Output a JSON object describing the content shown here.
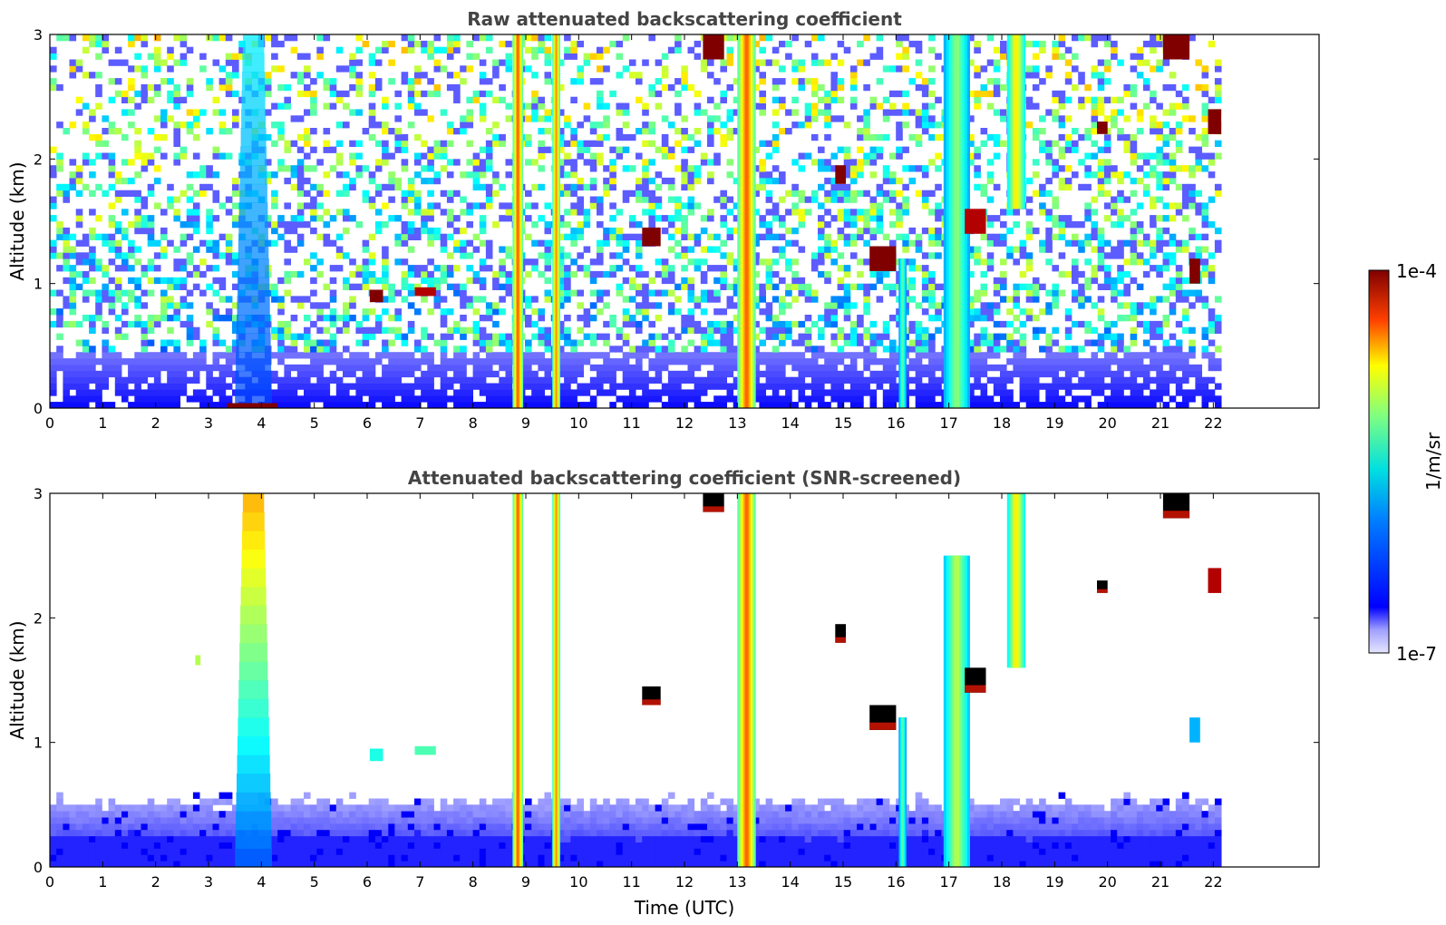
{
  "chart_data": [
    {
      "type": "heatmap",
      "title": "Raw attenuated backscattering coefficient",
      "xlabel": "",
      "ylabel": "Altitude (km)",
      "xlim": [
        0,
        24
      ],
      "ylim": [
        0,
        3
      ],
      "x_ticks": [
        "0",
        "1",
        "2",
        "3",
        "4",
        "5",
        "6",
        "7",
        "8",
        "9",
        "10",
        "11",
        "12",
        "13",
        "14",
        "15",
        "16",
        "17",
        "18",
        "19",
        "20",
        "21",
        "22"
      ],
      "y_ticks": [
        "0",
        "1",
        "2",
        "3"
      ],
      "data_extent_hours": [
        0,
        22.15
      ],
      "background_noise": {
        "description": "pixel noise increasing with altitude; boundary layer below ~0.5 km",
        "boundary_layer_top_km": 0.45
      },
      "features": [
        {
          "kind": "aerosol_plume",
          "x_start": 3.5,
          "x_end": 4.2,
          "y_bottom": 0,
          "y_top": 3.0,
          "level": 0.35
        },
        {
          "kind": "cloud_column",
          "x_start": 8.75,
          "x_end": 8.95,
          "y_bottom": 0,
          "y_top": 3.0,
          "level": 0.85
        },
        {
          "kind": "cloud_column",
          "x_start": 9.5,
          "x_end": 9.65,
          "y_bottom": 0,
          "y_top": 3.0,
          "level": 0.8
        },
        {
          "kind": "cloud_column",
          "x_start": 13.0,
          "x_end": 13.35,
          "y_bottom": 0,
          "y_top": 3.0,
          "level": 0.85
        },
        {
          "kind": "cloud_column",
          "x_start": 16.05,
          "x_end": 16.2,
          "y_bottom": 0,
          "y_top": 1.2,
          "level": 0.5
        },
        {
          "kind": "cloud_column",
          "x_start": 16.9,
          "x_end": 17.4,
          "y_bottom": 0,
          "y_top": 3.0,
          "level": 0.55
        },
        {
          "kind": "cloud_column",
          "x_start": 18.1,
          "x_end": 18.45,
          "y_bottom": 1.6,
          "y_top": 3.0,
          "level": 0.7
        },
        {
          "kind": "cloud_patch",
          "x_start": 12.35,
          "x_end": 12.75,
          "y_bottom": 2.8,
          "y_top": 3.0,
          "level": 1.0
        },
        {
          "kind": "cloud_patch",
          "x_start": 21.05,
          "x_end": 21.55,
          "y_bottom": 2.8,
          "y_top": 3.0,
          "level": 1.0
        },
        {
          "kind": "cloud_patch",
          "x_start": 11.2,
          "x_end": 11.55,
          "y_bottom": 1.3,
          "y_top": 1.45,
          "level": 1.0
        },
        {
          "kind": "cloud_patch",
          "x_start": 14.85,
          "x_end": 15.05,
          "y_bottom": 1.8,
          "y_top": 1.95,
          "level": 1.0
        },
        {
          "kind": "cloud_patch",
          "x_start": 15.5,
          "x_end": 16.0,
          "y_bottom": 1.1,
          "y_top": 1.3,
          "level": 1.0
        },
        {
          "kind": "cloud_patch",
          "x_start": 17.3,
          "x_end": 17.7,
          "y_bottom": 1.4,
          "y_top": 1.6,
          "level": 0.95
        },
        {
          "kind": "cloud_patch",
          "x_start": 21.55,
          "x_end": 21.75,
          "y_bottom": 1.0,
          "y_top": 1.2,
          "level": 1.0
        },
        {
          "kind": "cloud_patch",
          "x_start": 21.9,
          "x_end": 22.15,
          "y_bottom": 2.2,
          "y_top": 2.4,
          "level": 1.0
        },
        {
          "kind": "cloud_patch",
          "x_start": 19.8,
          "x_end": 20.0,
          "y_bottom": 2.2,
          "y_top": 2.3,
          "level": 1.0
        },
        {
          "kind": "cloud_patch",
          "x_start": 6.05,
          "x_end": 6.3,
          "y_bottom": 0.85,
          "y_top": 0.95,
          "level": 1.0
        },
        {
          "kind": "cloud_patch",
          "x_start": 6.9,
          "x_end": 7.3,
          "y_bottom": 0.9,
          "y_top": 0.97,
          "level": 0.95
        },
        {
          "kind": "cloud_patch",
          "x_start": 3.35,
          "x_end": 4.3,
          "y_bottom": 0,
          "y_top": 0.04,
          "level": 1.0
        }
      ]
    },
    {
      "type": "heatmap",
      "title": "Attenuated backscattering coefficient (SNR-screened)",
      "xlabel": "Time (UTC)",
      "ylabel": "Altitude (km)",
      "xlim": [
        0,
        24
      ],
      "ylim": [
        0,
        3
      ],
      "x_ticks": [
        "0",
        "1",
        "2",
        "3",
        "4",
        "5",
        "6",
        "7",
        "8",
        "9",
        "10",
        "11",
        "12",
        "13",
        "14",
        "15",
        "16",
        "17",
        "18",
        "19",
        "20",
        "21",
        "22"
      ],
      "y_ticks": [
        "0",
        "1",
        "2",
        "3"
      ],
      "data_extent_hours": [
        0,
        22.15
      ],
      "boundary_layer_top_km": 0.5,
      "features": [
        {
          "kind": "aerosol_plume",
          "x_start": 3.5,
          "x_end": 4.2,
          "y_bottom": 0,
          "y_top": 3.0,
          "level": 0.4
        },
        {
          "kind": "cloud_column",
          "x_start": 8.75,
          "x_end": 8.95,
          "y_bottom": 0,
          "y_top": 3.0,
          "level": 0.85
        },
        {
          "kind": "cloud_column",
          "x_start": 9.5,
          "x_end": 9.65,
          "y_bottom": 0,
          "y_top": 3.0,
          "level": 0.8
        },
        {
          "kind": "cloud_column",
          "x_start": 13.0,
          "x_end": 13.35,
          "y_bottom": 0,
          "y_top": 3.0,
          "level": 0.85
        },
        {
          "kind": "cloud_column",
          "x_start": 16.05,
          "x_end": 16.2,
          "y_bottom": 0,
          "y_top": 1.2,
          "level": 0.5
        },
        {
          "kind": "cloud_column",
          "x_start": 16.9,
          "x_end": 17.4,
          "y_bottom": 0,
          "y_top": 2.5,
          "level": 0.6
        },
        {
          "kind": "cloud_column",
          "x_start": 18.1,
          "x_end": 18.45,
          "y_bottom": 1.6,
          "y_top": 3.0,
          "level": 0.7
        },
        {
          "kind": "cloud_patch_saturated",
          "x_start": 12.35,
          "x_end": 12.75,
          "y_bottom": 2.85,
          "y_top": 3.0
        },
        {
          "kind": "cloud_patch_saturated",
          "x_start": 21.05,
          "x_end": 21.55,
          "y_bottom": 2.8,
          "y_top": 3.0
        },
        {
          "kind": "cloud_patch_saturated",
          "x_start": 11.2,
          "x_end": 11.55,
          "y_bottom": 1.3,
          "y_top": 1.45
        },
        {
          "kind": "cloud_patch_saturated",
          "x_start": 14.85,
          "x_end": 15.05,
          "y_bottom": 1.8,
          "y_top": 1.95
        },
        {
          "kind": "cloud_patch_saturated",
          "x_start": 15.5,
          "x_end": 16.0,
          "y_bottom": 1.1,
          "y_top": 1.3
        },
        {
          "kind": "cloud_patch_saturated",
          "x_start": 17.3,
          "x_end": 17.7,
          "y_bottom": 1.4,
          "y_top": 1.6
        },
        {
          "kind": "cloud_patch_saturated",
          "x_start": 19.8,
          "x_end": 20.0,
          "y_bottom": 2.2,
          "y_top": 2.3
        },
        {
          "kind": "cloud_patch",
          "x_start": 21.55,
          "x_end": 21.75,
          "y_bottom": 1.0,
          "y_top": 1.2,
          "level": 0.3
        },
        {
          "kind": "cloud_patch",
          "x_start": 21.9,
          "x_end": 22.15,
          "y_bottom": 2.2,
          "y_top": 2.4,
          "level": 0.95
        },
        {
          "kind": "cloud_patch",
          "x_start": 6.05,
          "x_end": 6.3,
          "y_bottom": 0.85,
          "y_top": 0.95,
          "level": 0.4
        },
        {
          "kind": "cloud_patch",
          "x_start": 6.9,
          "x_end": 7.3,
          "y_bottom": 0.9,
          "y_top": 0.97,
          "level": 0.45
        },
        {
          "kind": "cloud_patch",
          "x_start": 2.75,
          "x_end": 2.85,
          "y_bottom": 1.62,
          "y_top": 1.7,
          "level": 0.55
        }
      ]
    }
  ],
  "colorbar": {
    "label": "1/m/sr",
    "max_label": "1e-4",
    "min_label": "1e-7",
    "colormap": "jet",
    "low_end_color": "#e6e6ff",
    "high_end_color": "#800000"
  }
}
